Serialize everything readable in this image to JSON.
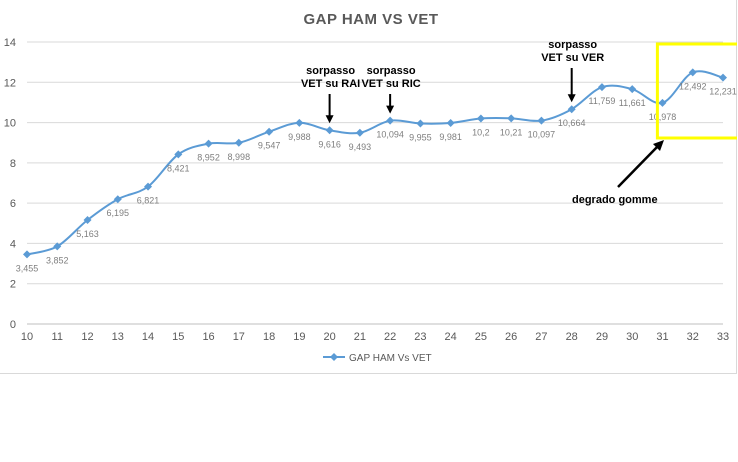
{
  "chart_data": {
    "type": "line",
    "title": "GAP HAM VS VET",
    "xlabel": "",
    "ylabel": "",
    "x": [
      10,
      11,
      12,
      13,
      14,
      15,
      16,
      17,
      18,
      19,
      20,
      21,
      22,
      23,
      24,
      25,
      26,
      27,
      28,
      29,
      30,
      31,
      32,
      33
    ],
    "series": [
      {
        "name": "GAP HAM Vs VET",
        "values": [
          3.455,
          3.852,
          5.163,
          6.195,
          6.821,
          8.421,
          8.952,
          8.998,
          9.547,
          9.988,
          9.616,
          9.493,
          10.094,
          9.955,
          9.981,
          10.2,
          10.21,
          10.097,
          10.664,
          11.759,
          11.661,
          10.978,
          12.492,
          12.231
        ],
        "labels": [
          "3,455",
          "3,852",
          "5,163",
          "6,195",
          "6,821",
          "8,421",
          "8,952",
          "8,998",
          "9,547",
          "9,988",
          "9,616",
          "9,493",
          "10,094",
          "9,955",
          "9,981",
          "10,2",
          "10,21",
          "10,097",
          "10,664",
          "11,759",
          "11,661",
          "10,978",
          "12,492",
          "12,231"
        ],
        "color": "#5b9bd5"
      }
    ],
    "ylim": [
      0,
      14
    ],
    "yticks": [
      0,
      2,
      4,
      6,
      8,
      10,
      12,
      14
    ],
    "grid": "horizontal",
    "legend": "bottom",
    "annotations": [
      {
        "text": [
          "sorpasso",
          "VET su RAI"
        ],
        "x": 20
      },
      {
        "text": [
          "sorpasso",
          "VET su RIC"
        ],
        "x": 22
      },
      {
        "text": [
          "sorpasso",
          "VET su VER"
        ],
        "x": 28
      },
      {
        "text": [
          "degrado gomme"
        ],
        "x": 31
      }
    ],
    "highlight": {
      "x_from": 30.7,
      "x_to": 33.3,
      "color": "#ffff00"
    }
  }
}
